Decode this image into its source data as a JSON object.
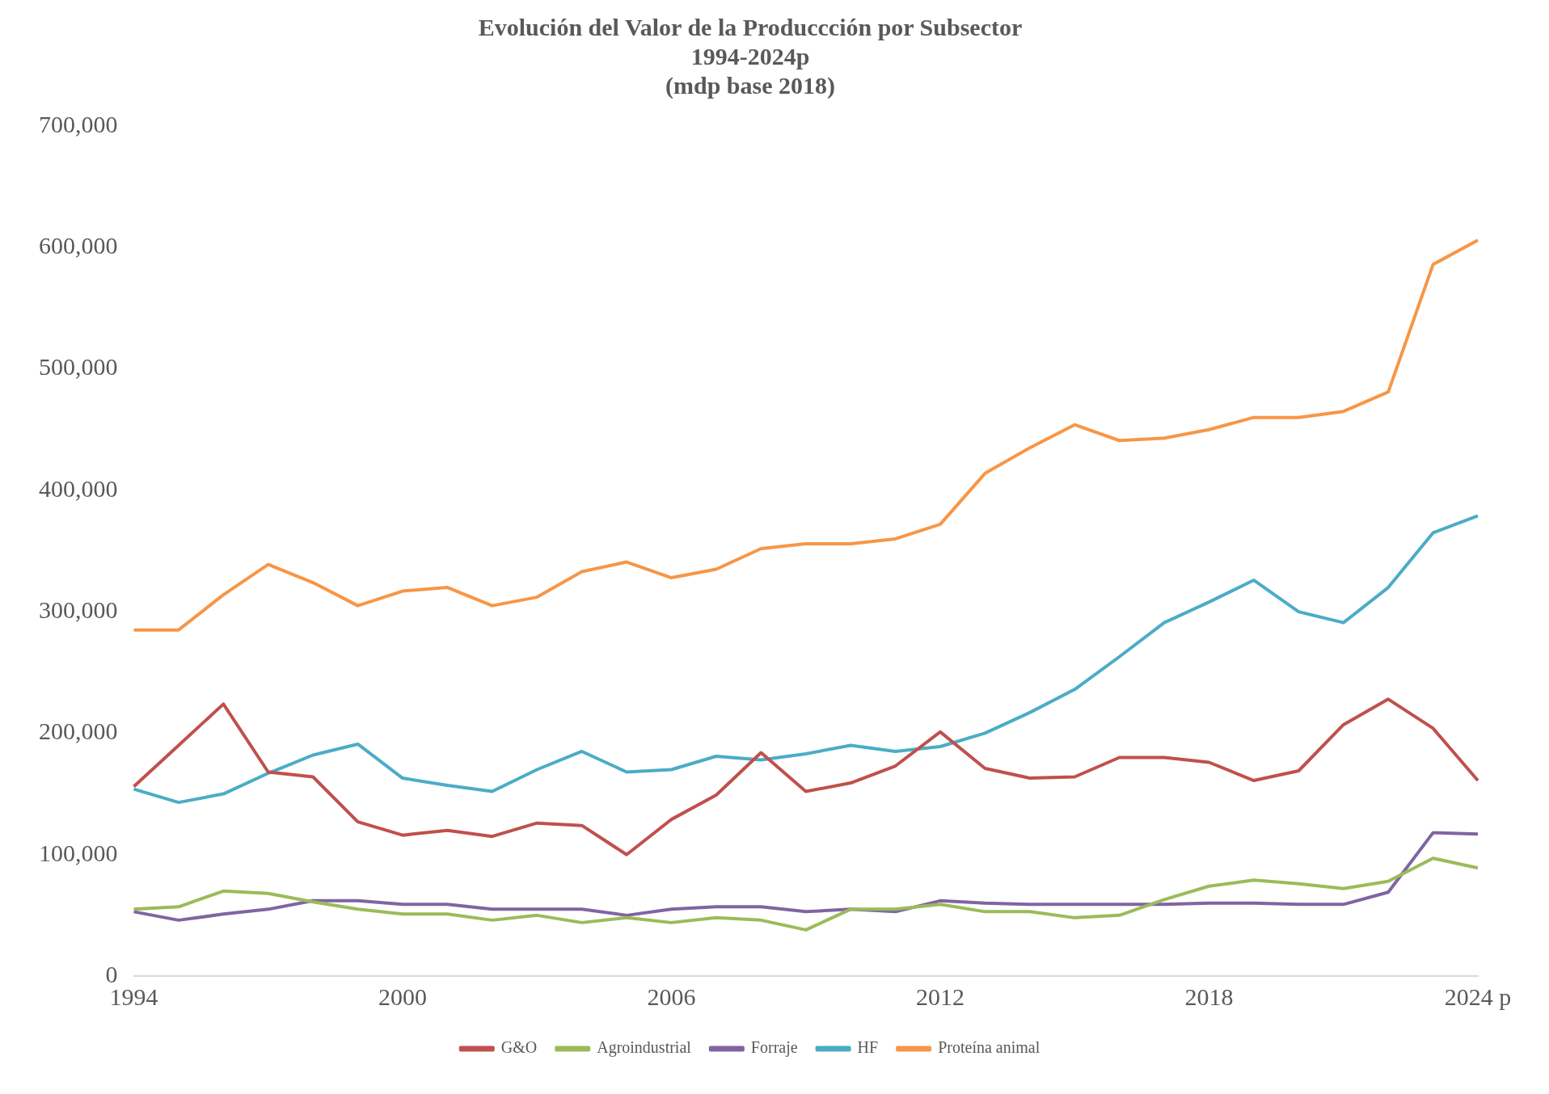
{
  "chart_data": {
    "type": "line",
    "title": "Evolución del Valor de la Produccción por Subsector\n1994-2024p\n(mdp base 2018)",
    "categories": [
      "1994",
      null,
      null,
      null,
      null,
      null,
      "2000",
      null,
      null,
      null,
      null,
      null,
      "2006",
      null,
      null,
      null,
      null,
      null,
      "2012",
      null,
      null,
      null,
      null,
      null,
      "2018",
      null,
      null,
      null,
      null,
      null,
      "2024 p"
    ],
    "series": [
      {
        "name": "G&O",
        "color": "#c0504d",
        "values": [
          156000,
          190000,
          224000,
          168000,
          164000,
          127000,
          116000,
          120000,
          115000,
          126000,
          124000,
          100000,
          129000,
          149000,
          184000,
          152000,
          159000,
          173000,
          201000,
          171000,
          163000,
          164000,
          180000,
          180000,
          176000,
          161000,
          169000,
          207000,
          228000,
          204000,
          161000
        ]
      },
      {
        "name": "Agroindustrial",
        "color": "#9bbb59",
        "values": [
          55000,
          57000,
          70000,
          68000,
          61000,
          55000,
          51000,
          51000,
          46000,
          50000,
          44000,
          48000,
          44000,
          48000,
          46000,
          38000,
          55000,
          55000,
          59000,
          53000,
          53000,
          48000,
          50000,
          63000,
          74000,
          79000,
          76000,
          72000,
          78000,
          97000,
          89000
        ]
      },
      {
        "name": "Forraje",
        "color": "#8064a2",
        "values": [
          53000,
          46000,
          51000,
          55000,
          62000,
          62000,
          59000,
          59000,
          55000,
          55000,
          55000,
          50000,
          55000,
          57000,
          57000,
          53000,
          55000,
          53000,
          62000,
          60000,
          59000,
          59000,
          59000,
          59000,
          60000,
          60000,
          59000,
          59000,
          69000,
          118000,
          117000
        ]
      },
      {
        "name": "HF",
        "color": "#4bacc6",
        "values": [
          154000,
          143000,
          150000,
          167000,
          182000,
          191000,
          163000,
          157000,
          152000,
          170000,
          185000,
          168000,
          170000,
          181000,
          178000,
          183000,
          190000,
          185000,
          189000,
          200000,
          217000,
          236000,
          263000,
          291000,
          308000,
          326000,
          300000,
          291000,
          320000,
          365000,
          379000
        ]
      },
      {
        "name": "Proteína animal",
        "color": "#f79646",
        "values": [
          285000,
          285000,
          314000,
          339000,
          324000,
          305000,
          317000,
          320000,
          305000,
          312000,
          333000,
          341000,
          328000,
          335000,
          352000,
          356000,
          356000,
          360000,
          372000,
          414000,
          435000,
          454000,
          441000,
          443000,
          450000,
          460000,
          460000,
          465000,
          481000,
          586000,
          606000
        ]
      }
    ],
    "ylim": [
      0,
      700000
    ],
    "yticks": [
      {
        "value": 0,
        "label": "0"
      },
      {
        "value": 100000,
        "label": "100,000"
      },
      {
        "value": 200000,
        "label": "200,000"
      },
      {
        "value": 300000,
        "label": "300,000"
      },
      {
        "value": 400000,
        "label": "400,000"
      },
      {
        "value": 500000,
        "label": "500,000"
      },
      {
        "value": 600000,
        "label": "600,000"
      },
      {
        "value": 700000,
        "label": "700,000"
      }
    ],
    "grid": false,
    "legend": "bottom",
    "marker": "none",
    "line_style": "solid"
  }
}
